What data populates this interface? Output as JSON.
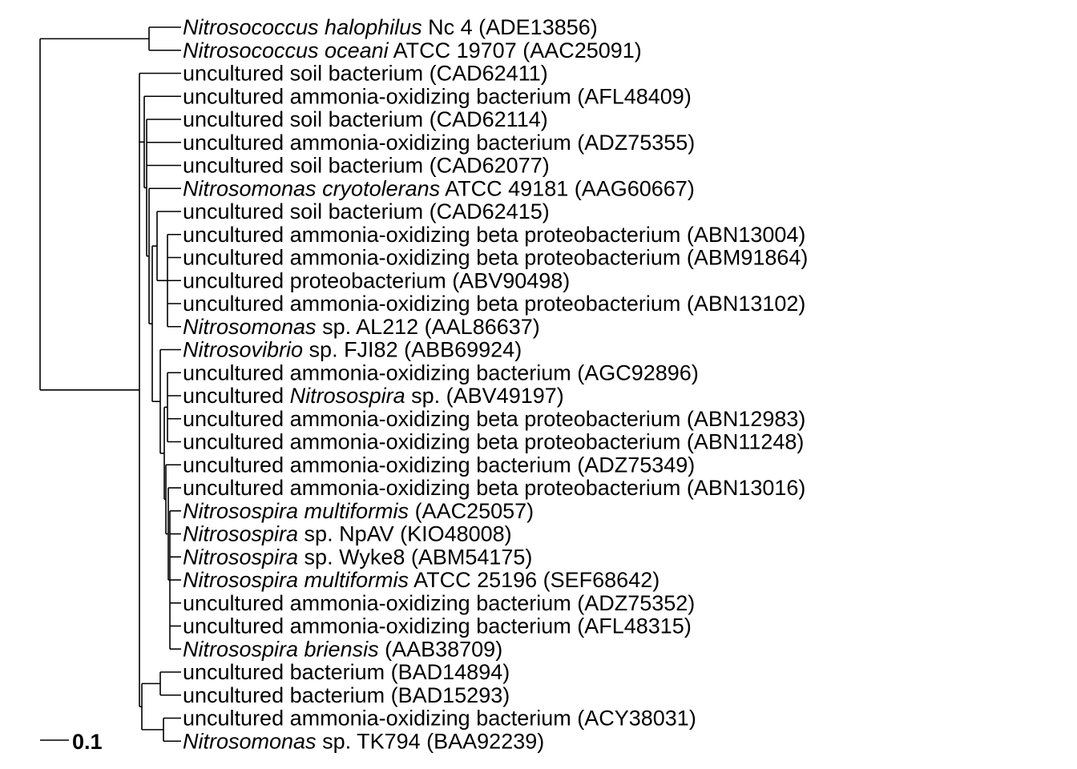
{
  "scale_bar": {
    "label": "0.1"
  },
  "leaves": [
    {
      "parts": [
        {
          "t": "Nitrosococcus halophilus",
          "i": true
        },
        {
          "t": " Nc 4 (ADE13856)",
          "i": false
        }
      ]
    },
    {
      "parts": [
        {
          "t": "Nitrosococcus oceani",
          "i": true
        },
        {
          "t": " ATCC 19707 (AAC25091)",
          "i": false
        }
      ]
    },
    {
      "parts": [
        {
          "t": "uncultured soil bacterium (CAD62411)",
          "i": false
        }
      ]
    },
    {
      "parts": [
        {
          "t": "uncultured ammonia-oxidizing bacterium (AFL48409)",
          "i": false
        }
      ]
    },
    {
      "parts": [
        {
          "t": "uncultured soil bacterium (CAD62114)",
          "i": false
        }
      ]
    },
    {
      "parts": [
        {
          "t": "uncultured ammonia-oxidizing bacterium (ADZ75355)",
          "i": false
        }
      ]
    },
    {
      "parts": [
        {
          "t": "uncultured soil bacterium (CAD62077)",
          "i": false
        }
      ]
    },
    {
      "parts": [
        {
          "t": "Nitrosomonas cryotolerans",
          "i": true
        },
        {
          "t": " ATCC 49181 (AAG60667)",
          "i": false
        }
      ]
    },
    {
      "parts": [
        {
          "t": "uncultured soil bacterium (CAD62415)",
          "i": false
        }
      ]
    },
    {
      "parts": [
        {
          "t": "uncultured ammonia-oxidizing beta proteobacterium (ABN13004)",
          "i": false
        }
      ]
    },
    {
      "parts": [
        {
          "t": "uncultured ammonia-oxidizing beta proteobacterium (ABM91864)",
          "i": false
        }
      ]
    },
    {
      "parts": [
        {
          "t": "uncultured proteobacterium (ABV90498)",
          "i": false
        }
      ]
    },
    {
      "parts": [
        {
          "t": "uncultured ammonia-oxidizing beta proteobacterium (ABN13102)",
          "i": false
        }
      ]
    },
    {
      "parts": [
        {
          "t": "Nitrosomonas",
          "i": true
        },
        {
          "t": " sp. AL212 (AAL86637)",
          "i": false
        }
      ]
    },
    {
      "parts": [
        {
          "t": "Nitrosovibrio",
          "i": true
        },
        {
          "t": " sp. FJI82 (ABB69924)",
          "i": false
        }
      ]
    },
    {
      "parts": [
        {
          "t": "uncultured ammonia-oxidizing bacterium (AGC92896)",
          "i": false
        }
      ]
    },
    {
      "parts": [
        {
          "t": "uncultured ",
          "i": false
        },
        {
          "t": "Nitrosospira",
          "i": true
        },
        {
          "t": " sp. (ABV49197)",
          "i": false
        }
      ]
    },
    {
      "parts": [
        {
          "t": "uncultured ammonia-oxidizing beta proteobacterium (ABN12983)",
          "i": false
        }
      ]
    },
    {
      "parts": [
        {
          "t": "uncultured ammonia-oxidizing beta proteobacterium (ABN11248)",
          "i": false
        }
      ]
    },
    {
      "parts": [
        {
          "t": "uncultured ammonia-oxidizing bacterium (ADZ75349)",
          "i": false
        }
      ]
    },
    {
      "parts": [
        {
          "t": "uncultured ammonia-oxidizing beta proteobacterium (ABN13016)",
          "i": false
        }
      ]
    },
    {
      "parts": [
        {
          "t": "Nitrosospira multiformis",
          "i": true
        },
        {
          "t": " (AAC25057)",
          "i": false
        }
      ]
    },
    {
      "parts": [
        {
          "t": "Nitrosospira",
          "i": true
        },
        {
          "t": " sp. NpAV (KIO48008)",
          "i": false
        }
      ]
    },
    {
      "parts": [
        {
          "t": "Nitrosospira",
          "i": true
        },
        {
          "t": " sp. Wyke8 (ABM54175)",
          "i": false
        }
      ]
    },
    {
      "parts": [
        {
          "t": "Nitrosospira multiformis",
          "i": true
        },
        {
          "t": " ATCC 25196 (SEF68642)",
          "i": false
        }
      ]
    },
    {
      "parts": [
        {
          "t": "uncultured ammonia-oxidizing bacterium (ADZ75352)",
          "i": false
        }
      ]
    },
    {
      "parts": [
        {
          "t": "uncultured ammonia-oxidizing bacterium (AFL48315)",
          "i": false
        }
      ]
    },
    {
      "parts": [
        {
          "t": "Nitrosospira briensis",
          "i": true
        },
        {
          "t": " (AAB38709)",
          "i": false
        }
      ]
    },
    {
      "parts": [
        {
          "t": "uncultured bacterium (BAD14894)",
          "i": false
        }
      ]
    },
    {
      "parts": [
        {
          "t": "uncultured bacterium (BAD15293)",
          "i": false
        }
      ]
    },
    {
      "parts": [
        {
          "t": "uncultured ammonia-oxidizing bacterium (ACY38031)",
          "i": false
        }
      ]
    },
    {
      "parts": [
        {
          "t": "Nitrosomonas",
          "i": true
        },
        {
          "t": " sp. TK794 (BAA92239)",
          "i": false
        }
      ]
    }
  ]
}
